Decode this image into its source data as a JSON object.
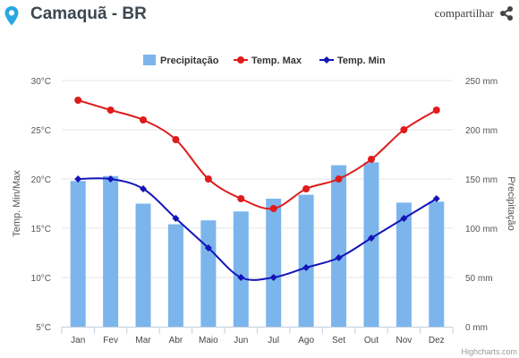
{
  "header": {
    "location_icon": "map-pin-icon",
    "title": "Camaquã - BR",
    "share_label": "compartilhar",
    "share_icon": "share-icon"
  },
  "credits": "Highcharts.com",
  "chart_data": {
    "type": "bar",
    "categories": [
      "Jan",
      "Fev",
      "Mar",
      "Abr",
      "Maio",
      "Jun",
      "Jul",
      "Ago",
      "Set",
      "Out",
      "Nov",
      "Dez"
    ],
    "legend": {
      "position": "top-center",
      "items": [
        "Precipitação",
        "Temp. Max",
        "Temp. Min"
      ]
    },
    "y_left": {
      "label": "Temp. Min/Max",
      "range": [
        5,
        30
      ],
      "ticks": [
        "5°C",
        "10°C",
        "15°C",
        "20°C",
        "25°C",
        "30°C"
      ]
    },
    "y_right": {
      "label": "Precipitação",
      "range": [
        0,
        250
      ],
      "ticks": [
        "0 mm",
        "50 mm",
        "100 mm",
        "150 mm",
        "200 mm",
        "250 mm"
      ]
    },
    "grid": true,
    "series": [
      {
        "name": "Precipitação",
        "type": "bar",
        "axis": "right",
        "color": "#7cb5ec",
        "values": [
          148,
          153,
          125,
          104,
          108,
          117,
          130,
          134,
          164,
          167,
          126,
          127
        ]
      },
      {
        "name": "Temp. Max",
        "type": "line",
        "axis": "left",
        "color": "#e01b1b",
        "marker": "circle",
        "values": [
          28,
          27,
          26,
          24,
          20,
          18,
          17,
          19,
          20,
          22,
          25,
          27
        ]
      },
      {
        "name": "Temp. Min",
        "type": "line",
        "axis": "left",
        "color": "#1414b8",
        "marker": "diamond",
        "values": [
          20,
          20,
          19,
          16,
          13,
          10,
          10,
          11,
          12,
          14,
          16,
          18
        ]
      }
    ]
  }
}
